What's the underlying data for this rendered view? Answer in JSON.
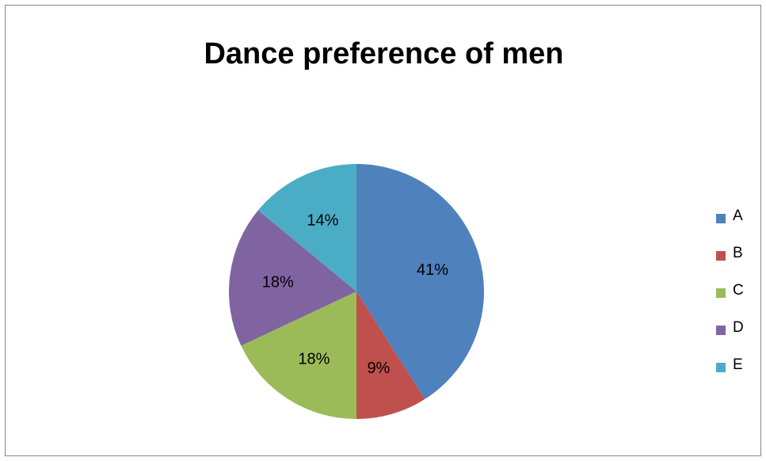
{
  "chart_data": {
    "type": "pie",
    "title": "Dance preference of men",
    "categories": [
      "A",
      "B",
      "C",
      "D",
      "E"
    ],
    "values": [
      41,
      9,
      18,
      18,
      14
    ],
    "data_labels": [
      "41%",
      "9%",
      "18%",
      "18%",
      "14%"
    ],
    "colors": [
      "#4F81BD",
      "#C0504D",
      "#9BBB59",
      "#8064A2",
      "#4BACC6"
    ],
    "legend_position": "right"
  }
}
